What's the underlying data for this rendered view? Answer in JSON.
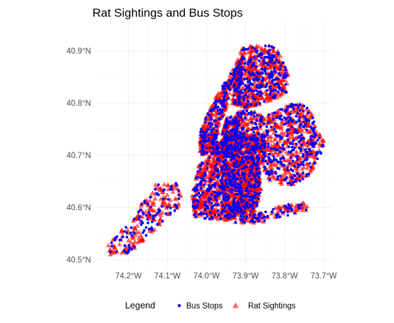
{
  "chart_data": {
    "type": "scatter",
    "title": "Rat Sightings and Bus Stops",
    "xlabel": "",
    "ylabel": "",
    "xlim": [
      -74.285,
      -73.68
    ],
    "ylim": [
      40.485,
      40.955
    ],
    "x_ticks": [
      {
        "value": -74.2,
        "label": "74.2°W"
      },
      {
        "value": -74.1,
        "label": "74.1°W"
      },
      {
        "value": -74.0,
        "label": "74.0°W"
      },
      {
        "value": -73.9,
        "label": "73.9°W"
      },
      {
        "value": -73.8,
        "label": "73.8°W"
      },
      {
        "value": -73.7,
        "label": "73.7°W"
      }
    ],
    "y_ticks": [
      {
        "value": 40.5,
        "label": "40.5°N"
      },
      {
        "value": 40.6,
        "label": "40.6°N"
      },
      {
        "value": 40.7,
        "label": "40.7°N"
      },
      {
        "value": 40.8,
        "label": "40.8°N"
      },
      {
        "value": 40.9,
        "label": "40.9°N"
      }
    ],
    "grid": true,
    "legend": {
      "title": "Legend",
      "position": "bottom",
      "entries": [
        {
          "label": "Bus Stops",
          "shape": "circle",
          "color": "#0000ff"
        },
        {
          "label": "Rat Sightings",
          "shape": "triangle",
          "color": "#ff0000"
        }
      ]
    },
    "series": [
      {
        "name": "Bus Stops",
        "color": "#0000ff",
        "shape": "circle",
        "regions": [
          {
            "x": [
              -74.255,
              -74.06
            ],
            "y": [
              40.498,
              40.655
            ],
            "density": 0.35
          },
          {
            "x": [
              -74.02,
              -73.91
            ],
            "y": [
              40.7,
              40.88
            ],
            "density": 0.9
          },
          {
            "x": [
              -73.93,
              -73.78
            ],
            "y": [
              40.79,
              40.91
            ],
            "density": 0.7
          },
          {
            "x": [
              -74.04,
              -73.85
            ],
            "y": [
              40.57,
              40.74
            ],
            "density": 0.75
          },
          {
            "x": [
              -73.96,
              -73.7
            ],
            "y": [
              40.58,
              40.8
            ],
            "density": 0.55
          }
        ]
      },
      {
        "name": "Rat Sightings",
        "color": "#ff0000",
        "shape": "triangle",
        "regions": [
          {
            "x": [
              -74.255,
              -74.06
            ],
            "y": [
              40.498,
              40.655
            ],
            "density": 0.4
          },
          {
            "x": [
              -74.02,
              -73.91
            ],
            "y": [
              40.7,
              40.88
            ],
            "density": 1.0
          },
          {
            "x": [
              -73.93,
              -73.78
            ],
            "y": [
              40.79,
              40.91
            ],
            "density": 0.85
          },
          {
            "x": [
              -74.04,
              -73.85
            ],
            "y": [
              40.57,
              40.74
            ],
            "density": 0.95
          },
          {
            "x": [
              -73.96,
              -73.7
            ],
            "y": [
              40.58,
              40.8
            ],
            "density": 0.6
          }
        ]
      }
    ]
  }
}
